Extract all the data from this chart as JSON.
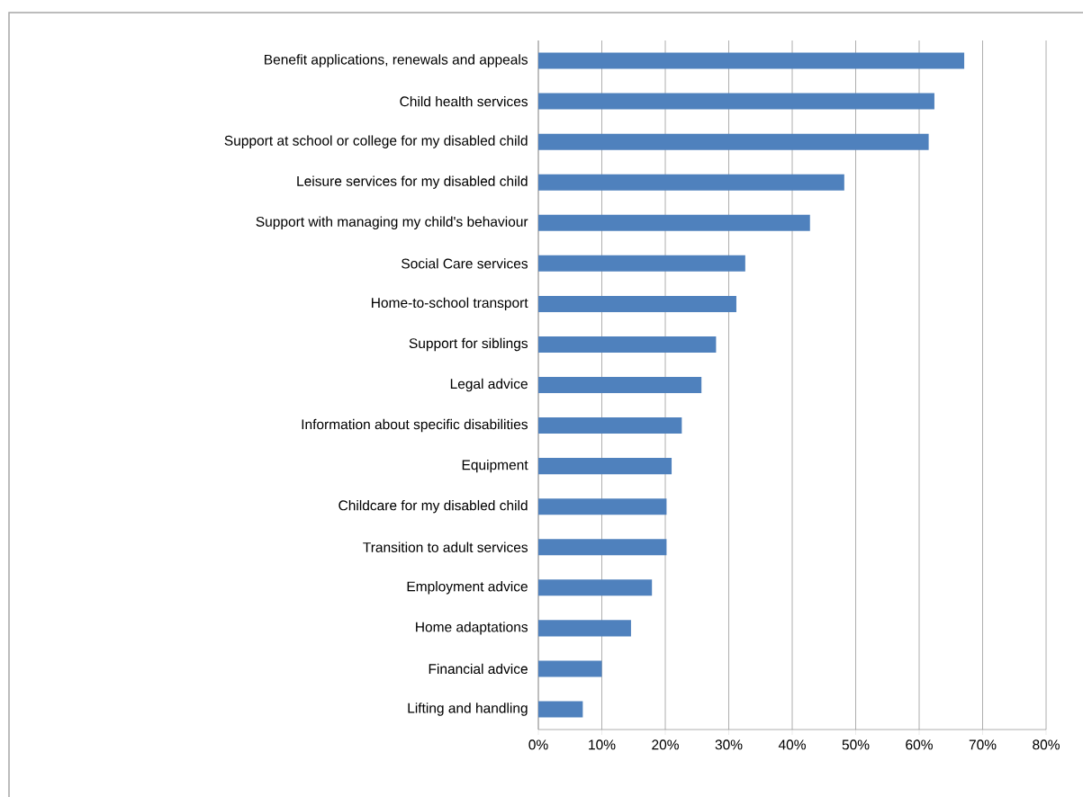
{
  "chart_data": {
    "type": "bar",
    "orientation": "horizontal",
    "categories": [
      "Benefit applications, renewals and appeals",
      "Child health services",
      "Support at school or college for my disabled child",
      "Leisure services for my disabled child",
      "Support with managing my child's behaviour",
      "Social Care services",
      "Home-to-school transport",
      "Support for siblings",
      "Legal advice",
      "Information about specific disabilities",
      "Equipment",
      "Childcare for my disabled child",
      "Transition to adult services",
      "Employment advice",
      "Home adaptations",
      "Financial advice",
      "Lifting and handling"
    ],
    "values": [
      67.1,
      62.4,
      61.5,
      48.2,
      42.8,
      32.6,
      31.2,
      28.0,
      25.7,
      22.6,
      21.0,
      20.2,
      20.2,
      17.9,
      14.6,
      10.0,
      7.0
    ],
    "color": "#4f81bd",
    "xlim": [
      0,
      80
    ],
    "xticks": [
      {
        "value": 0,
        "label": "0%"
      },
      {
        "value": 10,
        "label": "10%"
      },
      {
        "value": 20,
        "label": "20%"
      },
      {
        "value": 30,
        "label": "30%"
      },
      {
        "value": 40,
        "label": "40%"
      },
      {
        "value": 50,
        "label": "50%"
      },
      {
        "value": 60,
        "label": "60%"
      },
      {
        "value": 70,
        "label": "70%"
      },
      {
        "value": 80,
        "label": "80%"
      }
    ],
    "grid": "x"
  }
}
